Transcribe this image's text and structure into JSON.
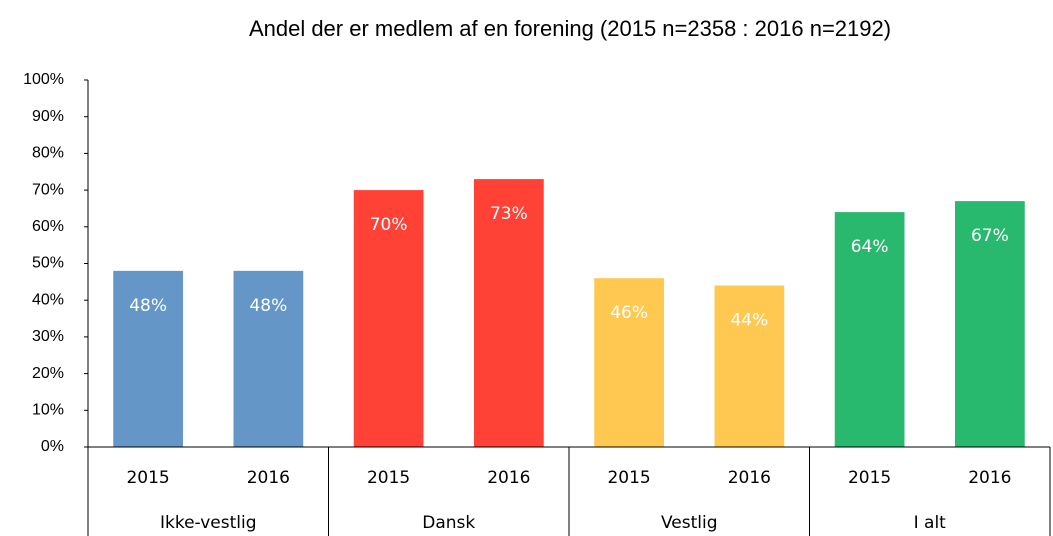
{
  "chart_data": {
    "type": "bar",
    "title": "Andel der er medlem af en forening (2015 n=2358 : 2016 n=2192)",
    "categories": [
      "2015",
      "2016",
      "2015",
      "2016",
      "2015",
      "2016",
      "2015",
      "2016"
    ],
    "groups": [
      "Ikke-vestlig",
      "Dansk",
      "Vestlig",
      "I alt"
    ],
    "values": [
      48,
      48,
      70,
      73,
      46,
      44,
      64,
      67
    ],
    "value_labels": [
      "48%",
      "48%",
      "70%",
      "73%",
      "46%",
      "44%",
      "64%",
      "67%"
    ],
    "colors": [
      "#6496c8",
      "#6496c8",
      "#ff4136",
      "#ff4136",
      "#ffc850",
      "#ffc850",
      "#28b96e",
      "#28b96e"
    ],
    "ylim": [
      0,
      100
    ],
    "yticks": [
      {
        "value": 0,
        "label": "0%"
      },
      {
        "value": 10,
        "label": "10%"
      },
      {
        "value": 20,
        "label": "20%"
      },
      {
        "value": 30,
        "label": "30%"
      },
      {
        "value": 40,
        "label": "40%"
      },
      {
        "value": 50,
        "label": "50%"
      },
      {
        "value": 60,
        "label": "60%"
      },
      {
        "value": 70,
        "label": "70%"
      },
      {
        "value": 80,
        "label": "80%"
      },
      {
        "value": 90,
        "label": "90%"
      },
      {
        "value": 100,
        "label": "100%"
      }
    ],
    "grid": false
  }
}
